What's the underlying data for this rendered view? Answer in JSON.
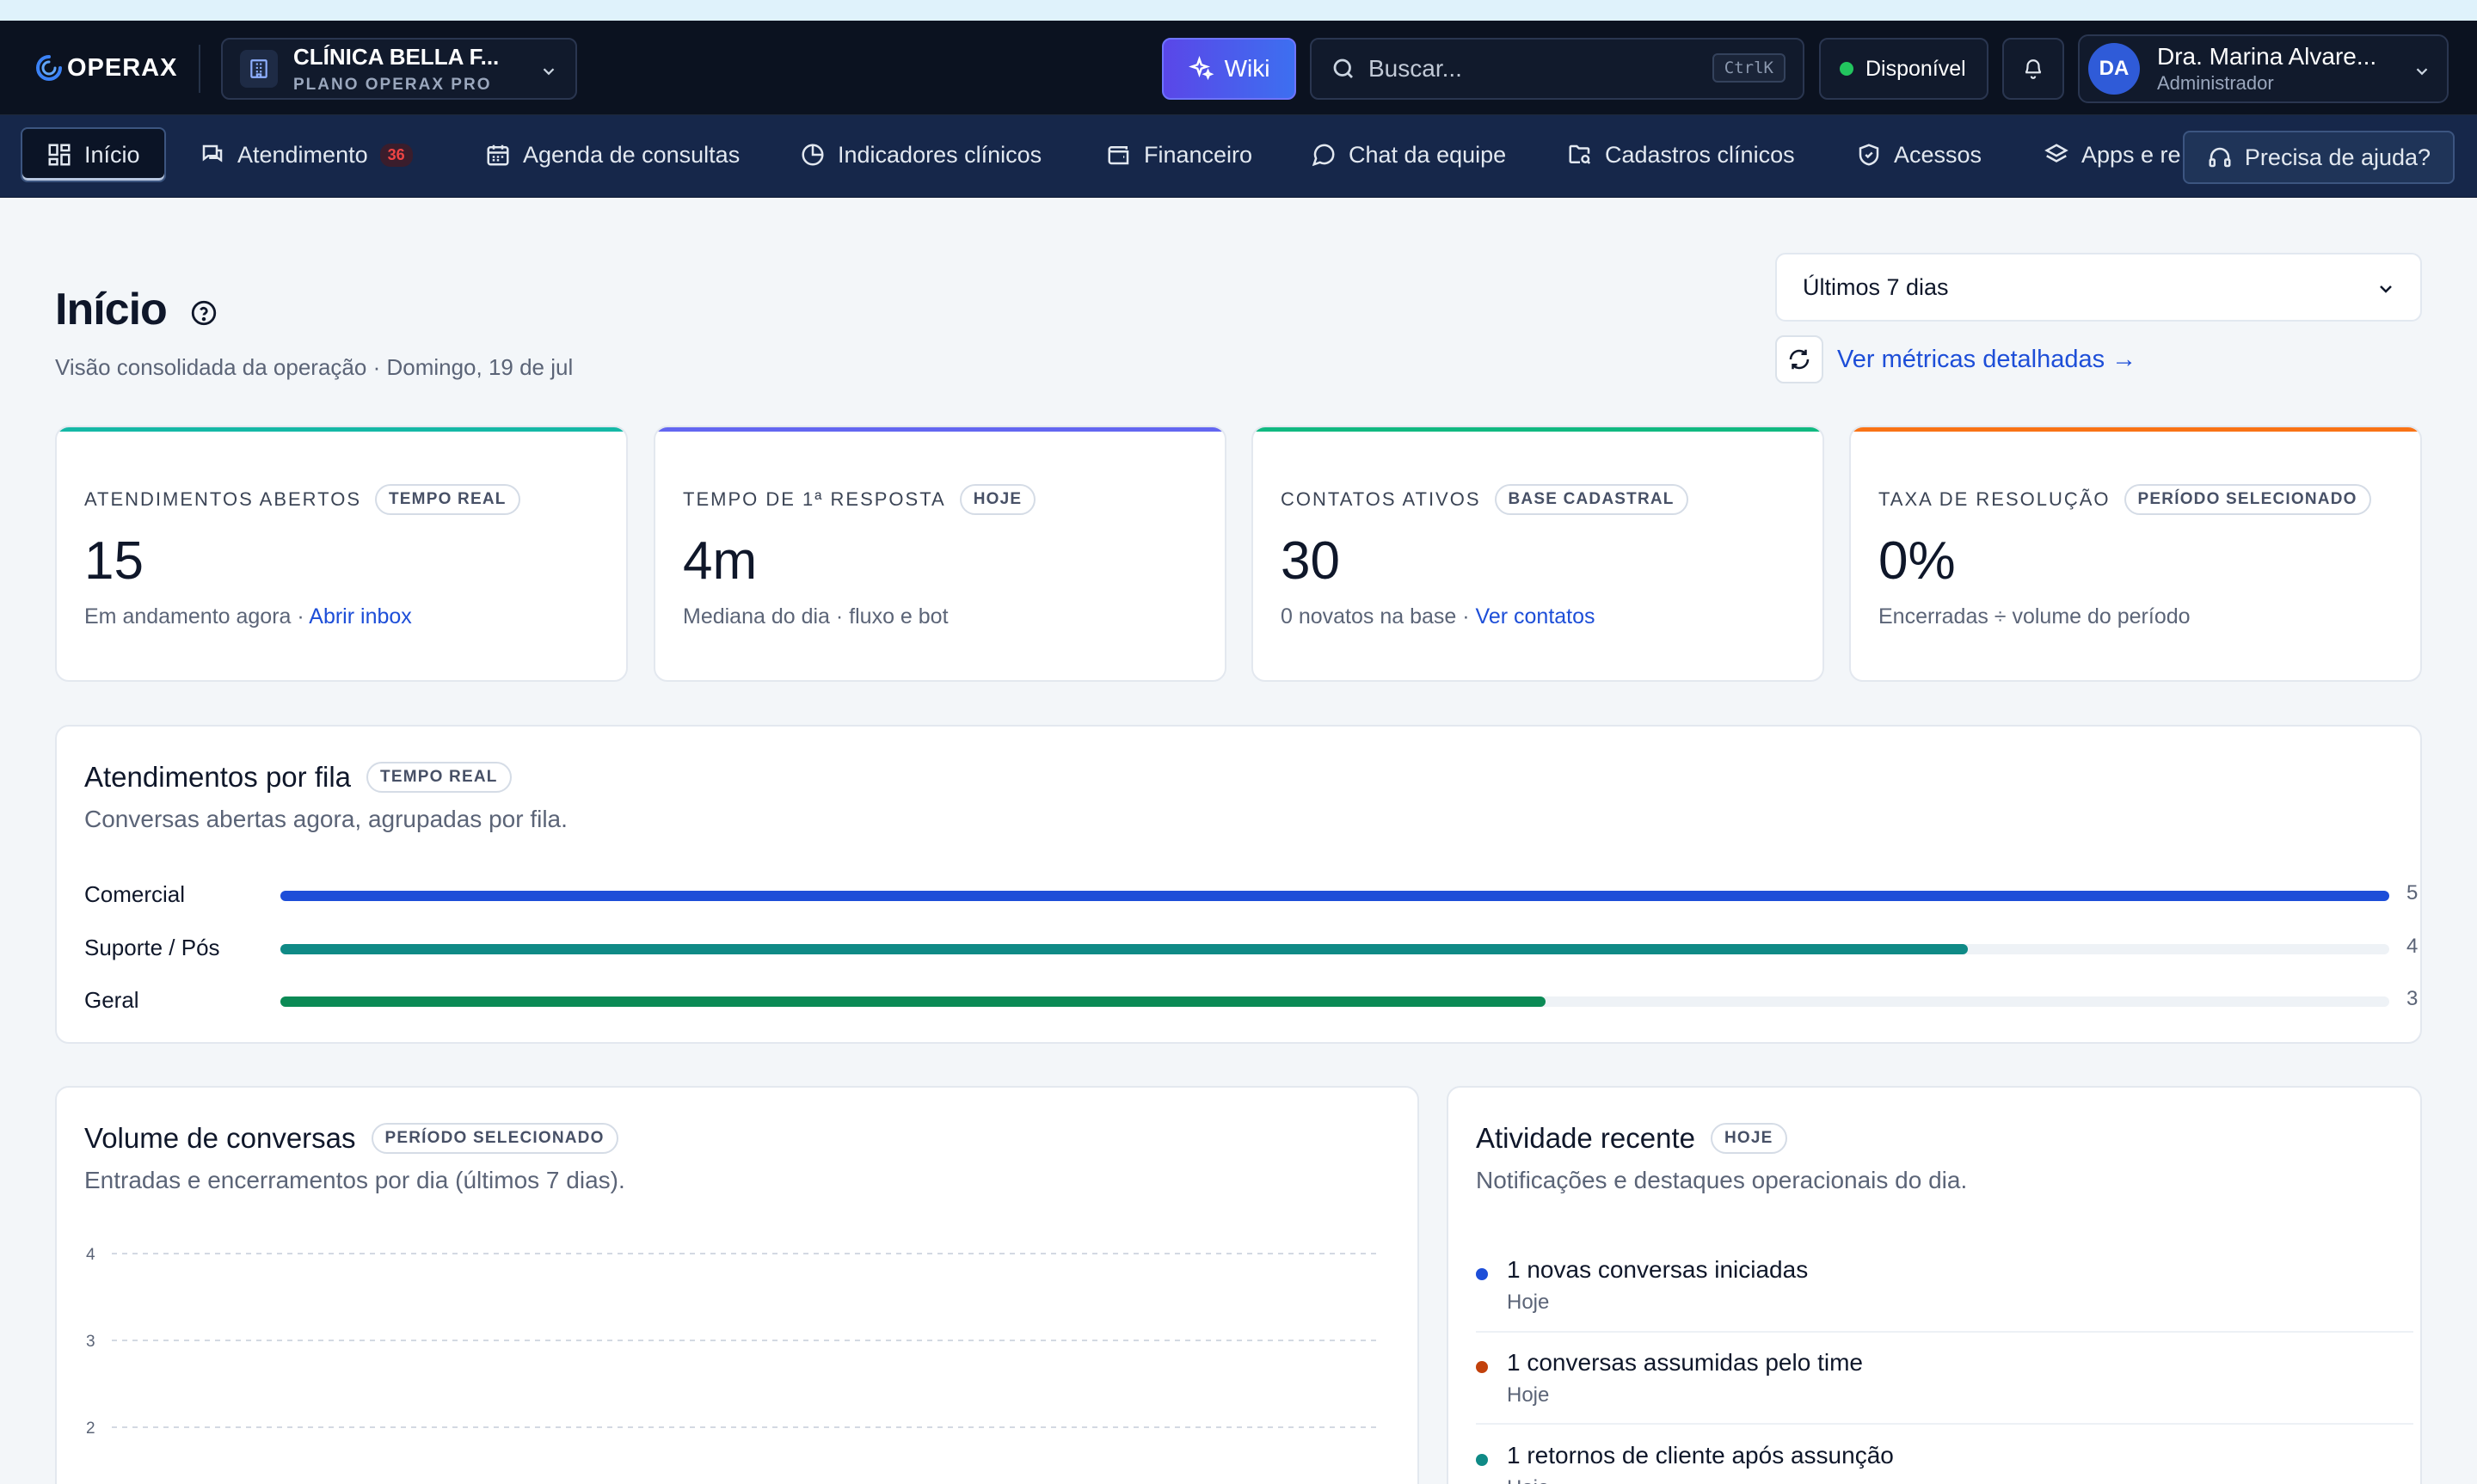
{
  "app": {
    "brand": "OPERAX",
    "org_name": "CLÍNICA BELLA F...",
    "org_plan": "PLANO OPERAX PRO",
    "wiki_label": "Wiki",
    "search_placeholder": "Buscar...",
    "search_shortcut": "CtrlK",
    "status_label": "Disponível",
    "status_color": "#22c55e",
    "user_initials": "DA",
    "user_name": "Dra. Marina Alvare...",
    "user_role": "Administrador"
  },
  "nav": {
    "items": [
      {
        "label": "Início",
        "icon": "grid-icon",
        "active": true
      },
      {
        "label": "Atendimento",
        "icon": "chat-square-icon",
        "badge": "36"
      },
      {
        "label": "Agenda de consultas",
        "icon": "calendar-icon"
      },
      {
        "label": "Indicadores clínicos",
        "icon": "pie-chart-icon"
      },
      {
        "label": "Financeiro",
        "icon": "wallet-icon"
      },
      {
        "label": "Chat da equipe",
        "icon": "message-circle-icon"
      },
      {
        "label": "Cadastros clínicos",
        "icon": "folder-search-icon"
      },
      {
        "label": "Acessos",
        "icon": "shield-icon"
      },
      {
        "label": "Apps e re",
        "icon": "layers-icon"
      }
    ],
    "help_label": "Precisa de ajuda?"
  },
  "page": {
    "title": "Início",
    "subtitle": "Visão consolidada da operação · Domingo, 19 de jul",
    "period": "Últimos 7 dias",
    "metrics_link": "Ver métricas detalhadas →"
  },
  "kpis": [
    {
      "label": "ATENDIMENTOS ABERTOS",
      "pill": "TEMPO REAL",
      "value": "15",
      "note": "Em andamento agora · ",
      "link": "Abrir inbox",
      "color": "#14b8a6"
    },
    {
      "label": "TEMPO DE 1ª RESPOSTA",
      "pill": "HOJE",
      "value": "4m",
      "note": "Mediana do dia · fluxo e bot",
      "link": "",
      "color": "#6366f1"
    },
    {
      "label": "CONTATOS ATIVOS",
      "pill": "BASE CADASTRAL",
      "value": "30",
      "note": "0 novatos na base · ",
      "link": "Ver contatos",
      "color": "#10b981"
    },
    {
      "label": "TAXA DE RESOLUÇÃO",
      "pill": "PERÍODO SELECIONADO",
      "value": "0%",
      "note": "Encerradas ÷ volume do período",
      "link": "",
      "color": "#f97316"
    }
  ],
  "queues": {
    "title": "Atendimentos por fila",
    "pill": "TEMPO REAL",
    "subtitle": "Conversas abertas agora, agrupadas por fila.",
    "max": 5,
    "rows": [
      {
        "name": "Comercial",
        "count": 5,
        "color": "#1d4ed8"
      },
      {
        "name": "Suporte / Pós",
        "count": 4,
        "color": "#0f8a86"
      },
      {
        "name": "Geral",
        "count": 3,
        "color": "#0b8a55"
      }
    ]
  },
  "volume": {
    "title": "Volume de conversas",
    "pill": "PERÍODO SELECIONADO",
    "subtitle": "Entradas e encerramentos por dia (últimos 7 dias).",
    "chart_data": {
      "type": "line",
      "y_ticks": [
        "4",
        "3",
        "2"
      ],
      "ylim": [
        0,
        4
      ],
      "grid": true
    }
  },
  "activity": {
    "title": "Atividade recente",
    "pill": "HOJE",
    "subtitle": "Notificações e destaques operacionais do dia.",
    "items": [
      {
        "text": "1 novas conversas iniciadas",
        "time": "Hoje",
        "color": "#1d4ed8"
      },
      {
        "text": "1 conversas assumidas pelo time",
        "time": "Hoje",
        "color": "#c2410c"
      },
      {
        "text": "1 retornos de cliente após assunção",
        "time": "Hoje",
        "color": "#0f8a86"
      }
    ]
  }
}
